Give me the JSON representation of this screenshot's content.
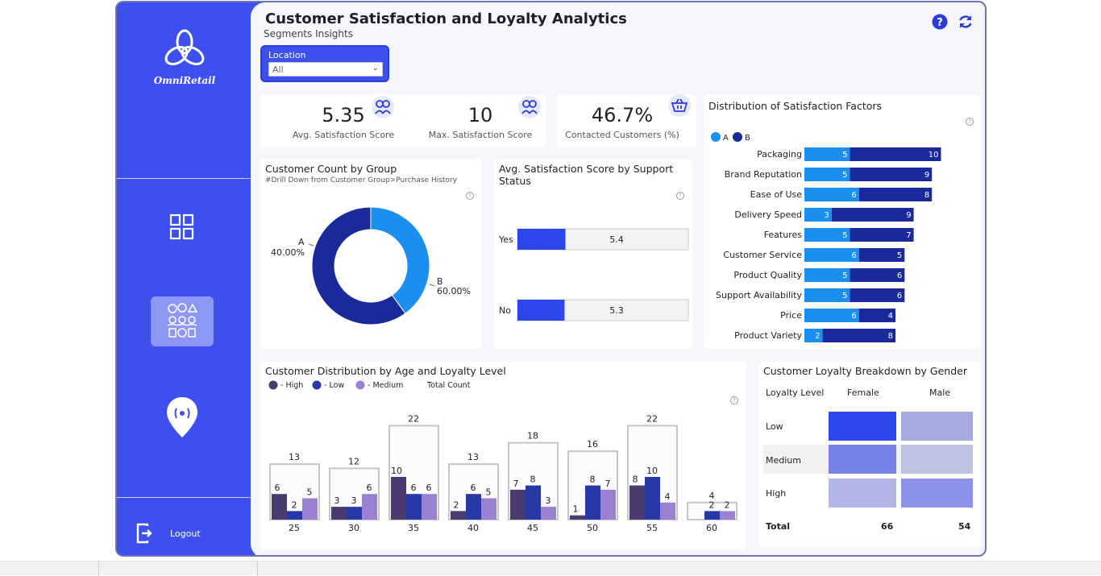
{
  "app": {
    "logo_text": "OmniRetail"
  },
  "header": {
    "title": "Customer Satisfaction and Loyalty Analytics",
    "subtitle": "Segments Insights"
  },
  "sidebar": {
    "logout_label": "Logout"
  },
  "filter": {
    "label": "Location",
    "value": "All"
  },
  "kpis": {
    "avg_score": {
      "value": "5.35",
      "label": "Avg. Satisfaction Score"
    },
    "max_score": {
      "value": "10",
      "label": "Max. Satisfaction Score"
    },
    "contacted": {
      "value": "46.7%",
      "label": "Contacted Customers (%)"
    }
  },
  "colors": {
    "accent": "#3d50ee",
    "series_a": "#1a8ff0",
    "series_b": "#1a2a9a",
    "high": "#4a3a6e",
    "low": "#2838a6",
    "medium": "#9b7fd0"
  },
  "chart_data": [
    {
      "type": "pie",
      "title": "Customer Count by Group",
      "subtitle": "#Drill Down from Customer Group>Purchase History",
      "categories": [
        "A",
        "B"
      ],
      "values": [
        40.0,
        60.0
      ],
      "labels": [
        "40.00%",
        "60.00%"
      ]
    },
    {
      "type": "bar",
      "title": "Avg. Satisfaction Score by Support Status",
      "categories": [
        "Yes",
        "No"
      ],
      "values": [
        5.4,
        5.3
      ],
      "labels": [
        "5.4",
        "5.3"
      ]
    },
    {
      "type": "bar",
      "title": "Distribution of Satisfaction Factors",
      "categories": [
        "Packaging",
        "Brand Reputation",
        "Ease of Use",
        "Delivery Speed",
        "Features",
        "Customer Service",
        "Product Quality",
        "Support Availability",
        "Price",
        "Product Variety"
      ],
      "series": [
        {
          "name": "A",
          "values": [
            5,
            5,
            6,
            3,
            5,
            6,
            5,
            5,
            6,
            2
          ]
        },
        {
          "name": "B",
          "values": [
            10,
            9,
            8,
            9,
            7,
            5,
            6,
            6,
            4,
            8
          ]
        }
      ],
      "legend": "top-left"
    },
    {
      "type": "bar",
      "title": "Customer Distribution by Age and Loyalty Level",
      "categories": [
        "25",
        "30",
        "35",
        "40",
        "45",
        "50",
        "55",
        "60"
      ],
      "legend_labels": [
        "- High",
        "- Low",
        "- Medium",
        "Total Count"
      ],
      "series": [
        {
          "name": "High",
          "values": [
            6,
            3,
            10,
            2,
            7,
            1,
            8,
            null
          ]
        },
        {
          "name": "Low",
          "values": [
            2,
            3,
            6,
            6,
            8,
            8,
            10,
            2
          ]
        },
        {
          "name": "Medium",
          "values": [
            5,
            6,
            6,
            5,
            3,
            7,
            4,
            2
          ]
        },
        {
          "name": "Total Count",
          "values": [
            13,
            12,
            22,
            13,
            18,
            16,
            22,
            4
          ]
        }
      ],
      "legend": "top-left"
    },
    {
      "type": "table",
      "title": "Customer Loyalty Breakdown by Gender",
      "columns": [
        "Loyalty Level",
        "Female",
        "Male"
      ],
      "rows": [
        "Low",
        "Medium",
        "High"
      ],
      "total_label": "Total",
      "totals": [
        "66",
        "54"
      ]
    }
  ]
}
